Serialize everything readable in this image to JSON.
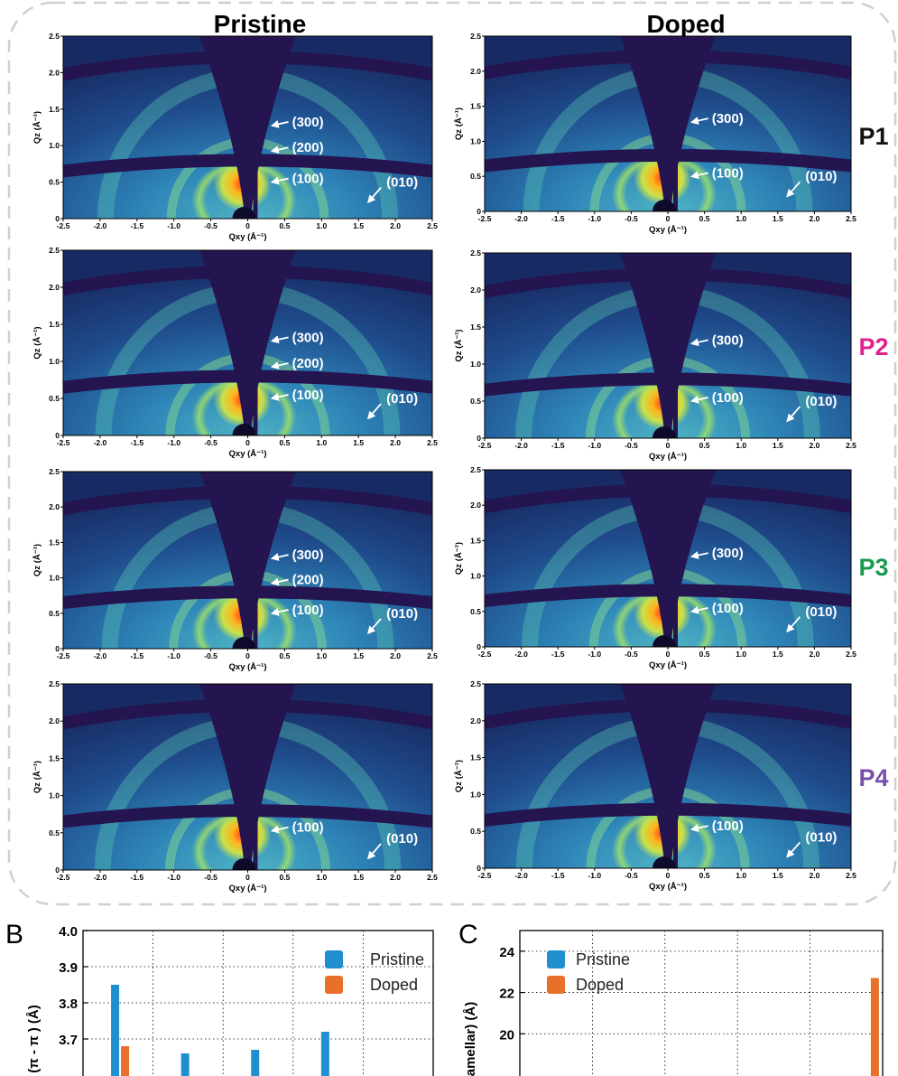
{
  "panel_a": {
    "column_titles": [
      "Pristine",
      "Doped"
    ],
    "row_labels": [
      {
        "text": "P1",
        "color": "#111111"
      },
      {
        "text": "P2",
        "color": "#e0218a"
      },
      {
        "text": "P3",
        "color": "#1a9a50"
      },
      {
        "text": "P4",
        "color": "#7b4fa8"
      }
    ],
    "x_ticks": [
      "-2.5",
      "-2.0",
      "-1.5",
      "-1.0",
      "-0.5",
      "0",
      "0.5",
      "1.0",
      "1.5",
      "2.0",
      "2.5"
    ],
    "y_ticks": [
      "0",
      "0.5",
      "1.0",
      "1.5",
      "2.0",
      "2.5"
    ],
    "x_label": "Qxy (Å⁻¹)",
    "y_label": "Qz (Å⁻¹)",
    "maps": [
      {
        "row": 0,
        "col": 0,
        "peaks": [
          "(300)",
          "(200)",
          "(100)",
          "(010)"
        ]
      },
      {
        "row": 0,
        "col": 1,
        "peaks": [
          "(300)",
          "(100)",
          "(010)"
        ]
      },
      {
        "row": 1,
        "col": 0,
        "peaks": [
          "(300)",
          "(200)",
          "(100)",
          "(010)"
        ]
      },
      {
        "row": 1,
        "col": 1,
        "peaks": [
          "(300)",
          "(100)",
          "(010)"
        ]
      },
      {
        "row": 2,
        "col": 0,
        "peaks": [
          "(300)",
          "(200)",
          "(100)",
          "(010)"
        ]
      },
      {
        "row": 2,
        "col": 1,
        "peaks": [
          "(300)",
          "(100)",
          "(010)"
        ]
      },
      {
        "row": 3,
        "col": 0,
        "peaks": [
          "(100)",
          "(010)"
        ]
      },
      {
        "row": 3,
        "col": 1,
        "peaks": [
          "(100)",
          "(010)"
        ]
      }
    ]
  },
  "chart_data": [
    {
      "panel": "B",
      "type": "bar",
      "ylabel": "(π - π ) (Å)",
      "ylim": [
        3.6,
        4.0
      ],
      "yticks": [
        "3.7",
        "3.8",
        "3.9",
        "4.0"
      ],
      "grid": true,
      "legend_position": "top-right",
      "series": [
        {
          "name": "Pristine",
          "color": "#1f8fd0",
          "values": [
            3.85,
            3.66,
            3.67,
            3.72
          ]
        },
        {
          "name": "Doped",
          "color": "#e8702a",
          "values": [
            3.68,
            null,
            null,
            null
          ]
        }
      ]
    },
    {
      "panel": "C",
      "type": "bar",
      "ylabel": "amellar) (Å)",
      "ylim": [
        18,
        25
      ],
      "yticks": [
        "20",
        "22",
        "24"
      ],
      "grid": true,
      "legend_position": "top-left",
      "series": [
        {
          "name": "Pristine",
          "color": "#1f8fd0",
          "values": [
            null,
            null,
            null,
            null
          ]
        },
        {
          "name": "Doped",
          "color": "#e8702a",
          "values": [
            null,
            null,
            null,
            22.7
          ]
        }
      ]
    }
  ]
}
